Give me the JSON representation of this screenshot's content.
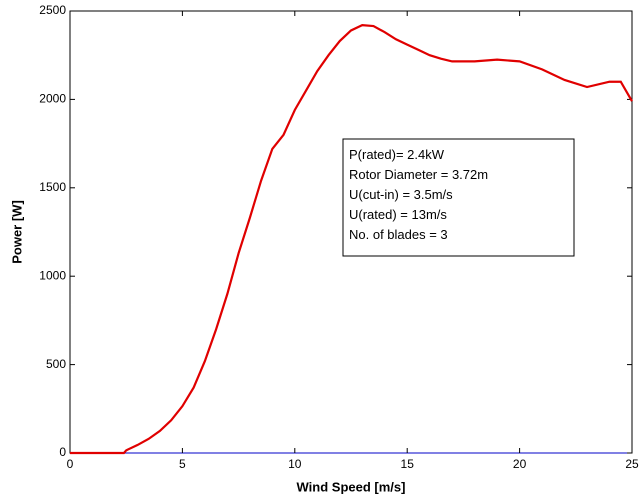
{
  "chart_data": {
    "type": "line",
    "xlabel": "Wind Speed [m/s]",
    "ylabel": "Power [W]",
    "annotation": [
      "P(rated)= 2.4kW",
      "Rotor Diameter = 3.72m",
      "U(cut-in) = 3.5m/s",
      "U(rated) = 13m/s",
      "No. of blades = 3"
    ],
    "x": [
      0,
      2.4,
      2.5,
      3,
      3.5,
      4,
      4.5,
      5,
      5.5,
      6,
      6.5,
      7,
      7.5,
      8,
      8.5,
      9,
      9.5,
      10,
      10.5,
      11,
      11.5,
      12,
      12.5,
      13,
      13.5,
      14,
      14.5,
      15,
      15.5,
      16,
      16.5,
      17,
      18,
      19,
      20,
      21,
      22,
      23,
      24,
      24.5,
      25
    ],
    "series": [
      {
        "color": "#e00000",
        "values": [
          0,
          0,
          15,
          45,
          80,
          125,
          185,
          265,
          370,
          520,
          700,
          900,
          1130,
          1330,
          1540,
          1720,
          1800,
          1940,
          2050,
          2160,
          2250,
          2330,
          2390,
          2420,
          2415,
          2380,
          2340,
          2310,
          2280,
          2250,
          2230,
          2215,
          2215,
          2225,
          2215,
          2170,
          2110,
          2070,
          2100,
          2100,
          1990
        ]
      }
    ],
    "xlim": [
      0,
      25
    ],
    "ylim": [
      0,
      2500
    ],
    "xticks": [
      0,
      5,
      10,
      15,
      20,
      25
    ],
    "yticks": [
      0,
      500,
      1000,
      1500,
      2000,
      2500
    ]
  }
}
